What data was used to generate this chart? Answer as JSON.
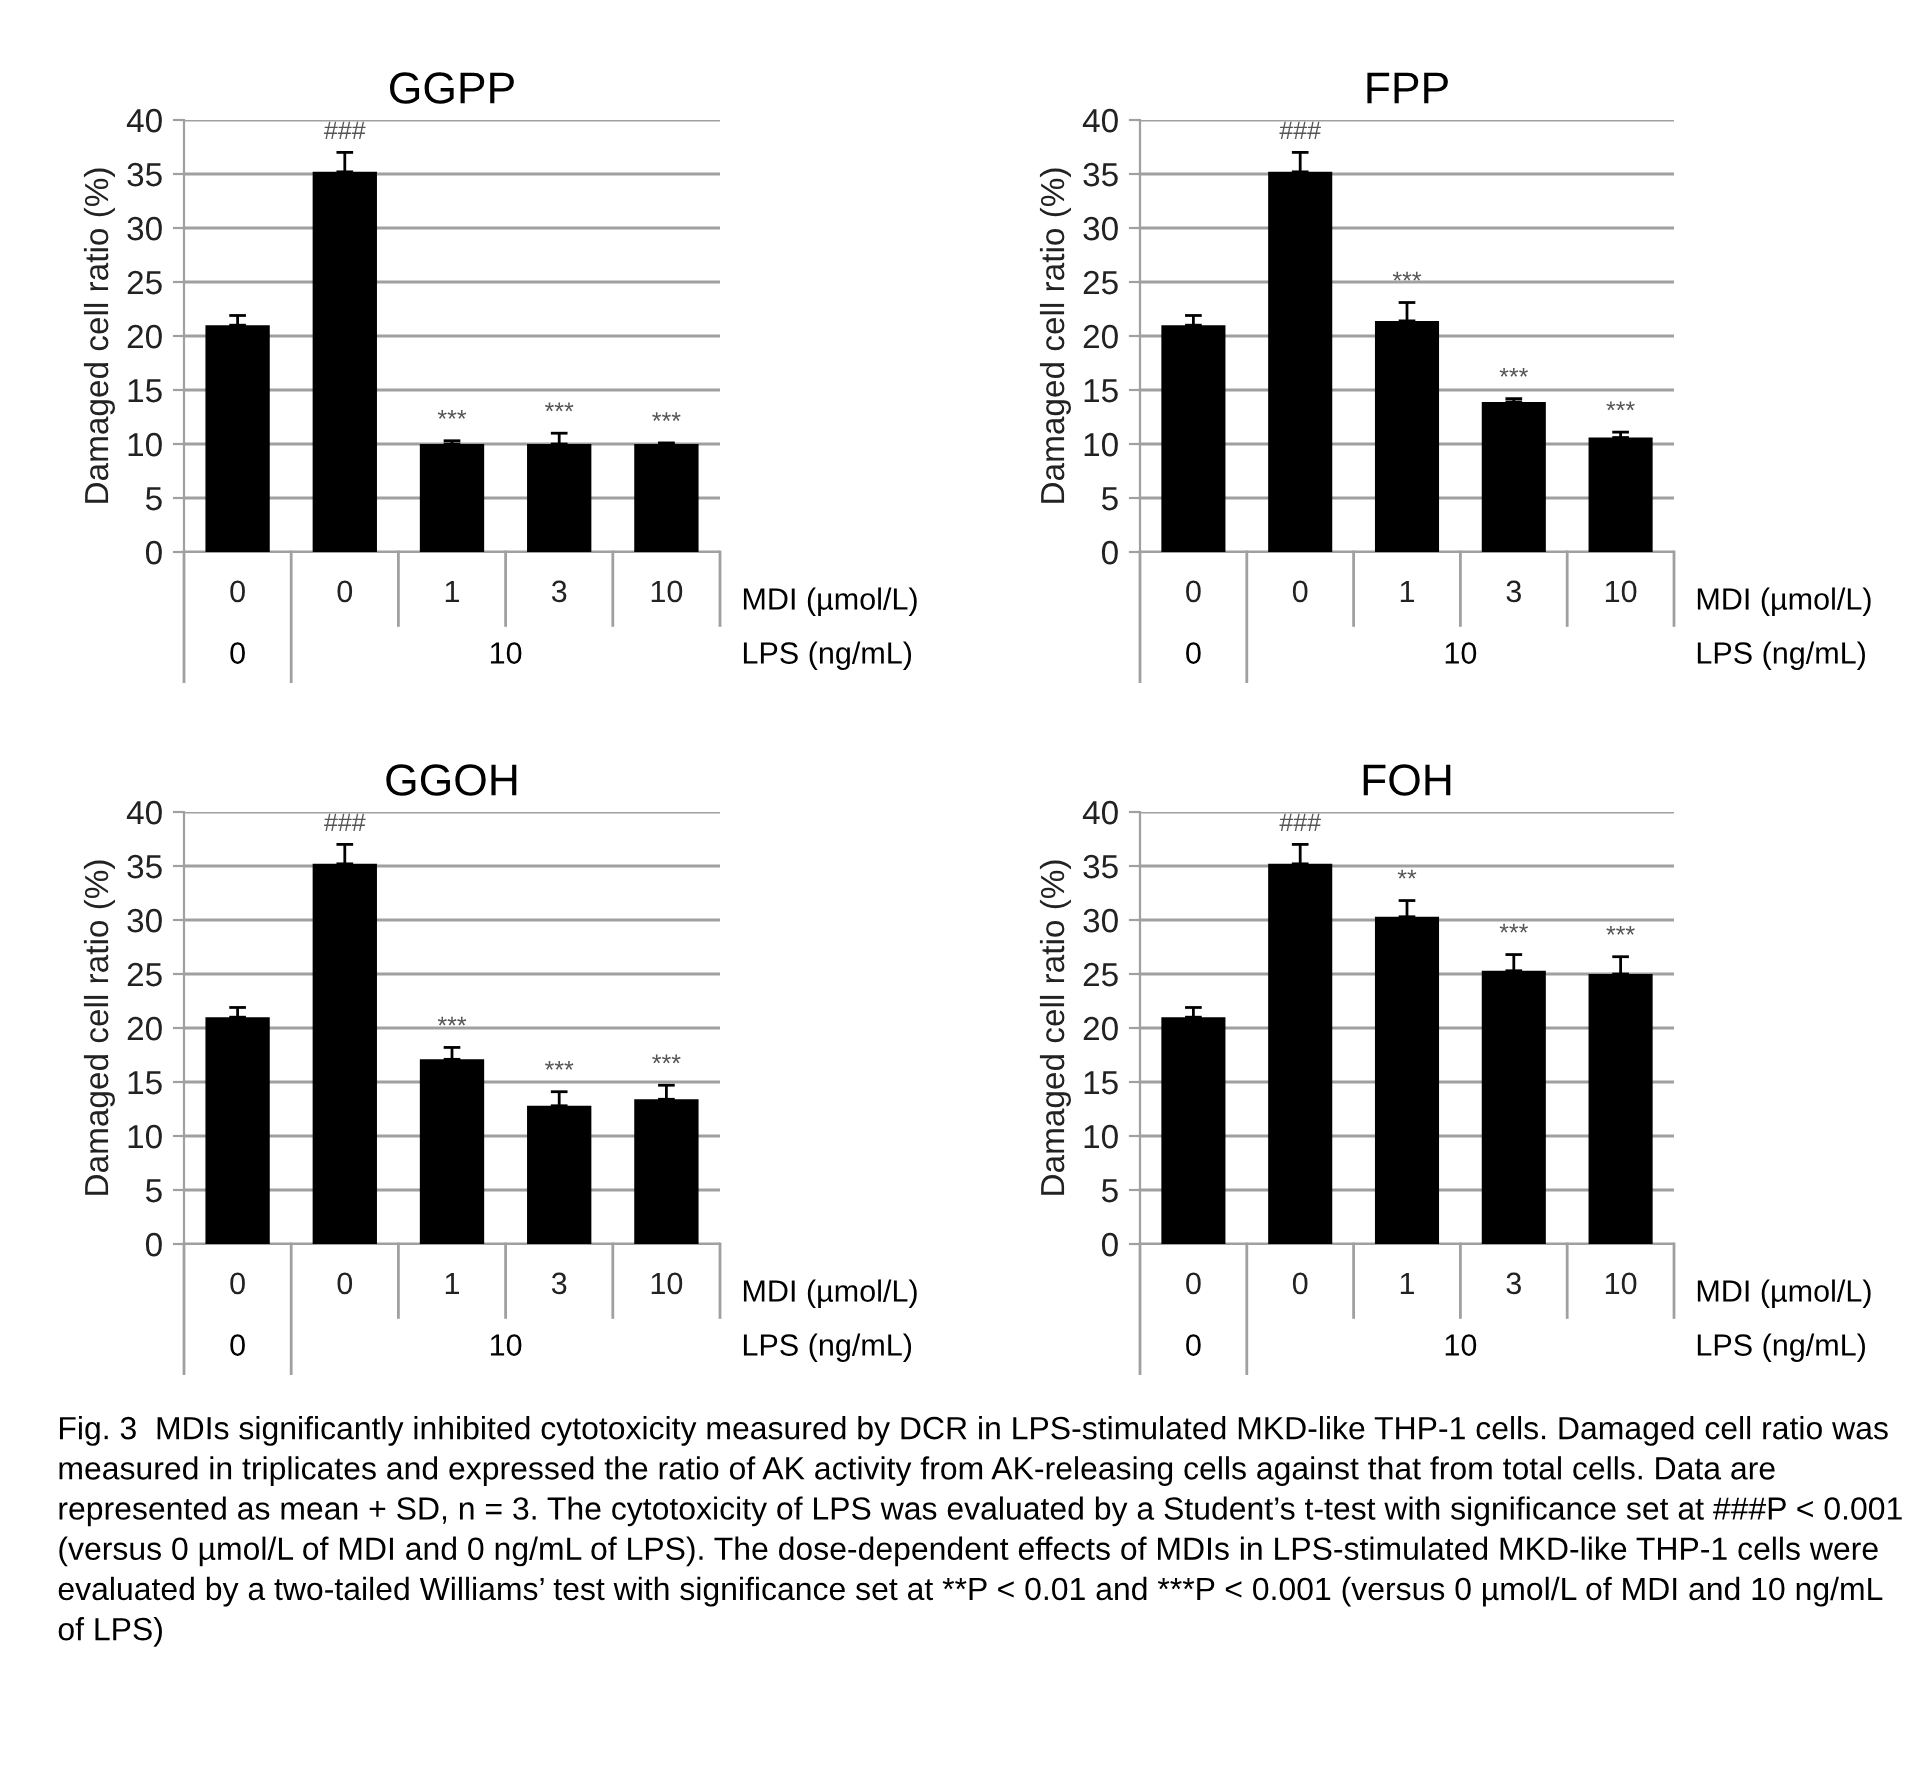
{
  "chart_data": [
    {
      "type": "bar",
      "title": "GGPP",
      "ylabel": "Damaged cell ratio (%)",
      "xlabel": "MDI (µmol/L)",
      "categories": [
        "0",
        "0",
        "1",
        "3",
        "10"
      ],
      "values": [
        21,
        35.2,
        10,
        10,
        10
      ],
      "errors": [
        [
          21,
          21.9
        ],
        [
          35.2,
          37.0
        ],
        [
          10,
          10.3
        ],
        [
          10,
          11.0
        ],
        [
          10,
          10.1
        ]
      ],
      "value_labels": [
        null,
        "###",
        "***",
        "***",
        "***"
      ],
      "color": "#000000",
      "ylim": [
        0,
        40
      ],
      "yticks": [
        0,
        5,
        10,
        15,
        20,
        25,
        30,
        35,
        40
      ],
      "grid": "y",
      "annotations": [
        "0",
        "10",
        "LPS (ng/mL)"
      ]
    },
    {
      "type": "bar",
      "title": "FPP",
      "ylabel": "Damaged cell ratio (%)",
      "xlabel": "MDI (µmol/L)",
      "categories": [
        "0",
        "0",
        "1",
        "3",
        "10"
      ],
      "values": [
        21,
        35.2,
        21.4,
        13.9,
        10.6
      ],
      "errors": [
        [
          21,
          21.9
        ],
        [
          35.2,
          37.0
        ],
        [
          21.4,
          23.1
        ],
        [
          13.9,
          14.2
        ],
        [
          10.6,
          11.1
        ]
      ],
      "value_labels": [
        null,
        "###",
        "***",
        "***",
        "***"
      ],
      "color": "#000000",
      "ylim": [
        0,
        40
      ],
      "yticks": [
        0,
        5,
        10,
        15,
        20,
        25,
        30,
        35,
        40
      ],
      "grid": "y",
      "annotations": [
        "0",
        "10",
        "LPS (ng/mL)"
      ]
    },
    {
      "type": "bar",
      "title": "GGOH",
      "ylabel": "Damaged cell ratio (%)",
      "xlabel": "MDI (µmol/L)",
      "categories": [
        "0",
        "0",
        "1",
        "3",
        "10"
      ],
      "values": [
        21,
        35.2,
        17.1,
        12.8,
        13.4
      ],
      "errors": [
        [
          21,
          21.9
        ],
        [
          35.2,
          37.0
        ],
        [
          17.1,
          18.2
        ],
        [
          12.8,
          14.1
        ],
        [
          13.4,
          14.7
        ]
      ],
      "value_labels": [
        null,
        "###",
        "***",
        "***",
        "***"
      ],
      "color": "#000000",
      "ylim": [
        0,
        40
      ],
      "yticks": [
        0,
        5,
        10,
        15,
        20,
        25,
        30,
        35,
        40
      ],
      "grid": "y",
      "annotations": [
        "0",
        "10",
        "LPS (ng/mL)"
      ]
    },
    {
      "type": "bar",
      "title": "FOH",
      "ylabel": "Damaged cell ratio (%)",
      "xlabel": "MDI (µmol/L)",
      "categories": [
        "0",
        "0",
        "1",
        "3",
        "10"
      ],
      "values": [
        21,
        35.2,
        30.3,
        25.3,
        25.0
      ],
      "errors": [
        [
          21,
          21.9
        ],
        [
          35.2,
          37.0
        ],
        [
          30.3,
          31.8
        ],
        [
          25.3,
          26.8
        ],
        [
          25.0,
          26.6
        ]
      ],
      "value_labels": [
        null,
        "###",
        "**",
        "***",
        "***"
      ],
      "color": "#000000",
      "ylim": [
        0,
        40
      ],
      "yticks": [
        0,
        5,
        10,
        15,
        20,
        25,
        30,
        35,
        40
      ],
      "grid": "y",
      "annotations": [
        "0",
        "10",
        "LPS (ng/mL)",
        "Fig. 3  MDIs significantly inhibited cytotoxicity measured by DCR in LPS-stimulated MKD-like THP-1 cells. Damaged cell ratio was measured in triplicates and expressed the ratio of AK activity from AK-releasing cells against that from total cells. Data are represented as mean + SD, n = 3. The cytotoxicity of LPS was evaluated by a Student’s t-test with significance set at ###P < 0.001 (versus 0 µmol/L of MDI and 0 ng/mL of LPS). The dose-dependent effects of MDIs in LPS-stimulated MKD-like THP-1 cells were evaluated by a two-tailed Williams’ test with significance set at **P < 0.01 and ***P < 0.001 (versus 0 µmol/L of MDI and 10 ng/mL of LPS)"
      ]
    }
  ]
}
